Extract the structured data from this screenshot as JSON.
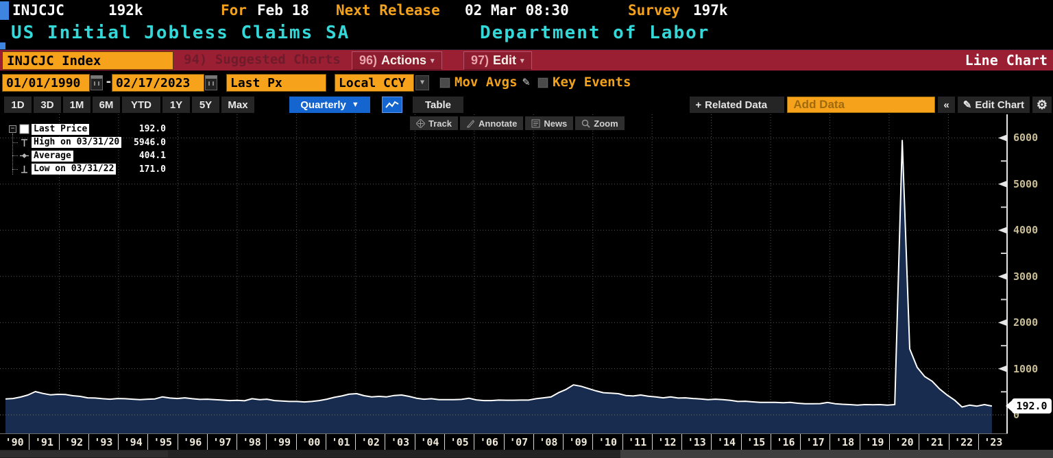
{
  "header": {
    "ticker": "INJCJC",
    "last_value": "192k",
    "for_label": "For",
    "for_value": "Feb 18",
    "next_release_label": "Next Release",
    "next_release_value": "02 Mar 08:30",
    "survey_label": "Survey",
    "survey_value": "197k",
    "security_name": "US Initial Jobless Claims SA",
    "source": "Department of Labor"
  },
  "command_bar": {
    "security_input": "INJCJC Index",
    "suggested_charts": "94) Suggested Charts",
    "actions_num": "96)",
    "actions_label": "Actions",
    "edit_num": "97)",
    "edit_label": "Edit",
    "dropdown_caret": "▾",
    "chart_type": "Line Chart"
  },
  "settings_bar": {
    "date_from": "01/01/1990",
    "date_separator": "-",
    "date_to": "02/17/2023",
    "px_type": "Last Px",
    "currency": "Local CCY",
    "dropdown_caret": "▼",
    "mov_avgs_label": "Mov Avgs",
    "key_events_label": "Key Events",
    "pencil_glyph": "✎"
  },
  "period_bar": {
    "periods": [
      "1D",
      "3D",
      "1M",
      "6M",
      "YTD",
      "1Y",
      "5Y",
      "Max"
    ],
    "frequency": "Quarterly",
    "frequency_caret": "▼",
    "table_label": "Table",
    "related_plus": "+",
    "related_label": "Related Data",
    "add_data_placeholder": "Add Data",
    "collapse_label": "«",
    "edit_chart_pencil": "✎",
    "edit_chart_label": "Edit Chart",
    "gear_glyph": "⚙"
  },
  "chart_toolbar": [
    "Track",
    "Annotate",
    "News",
    "Zoom"
  ],
  "legend": {
    "expander_glyph": "−",
    "rows": [
      {
        "marker": "swatch",
        "label": "Last Price",
        "value": "192.0"
      },
      {
        "marker": "high",
        "label": "High on 03/31/20",
        "value": "5946.0"
      },
      {
        "marker": "avg",
        "label": "Average",
        "value": "404.1"
      },
      {
        "marker": "low",
        "label": "Low on 03/31/22",
        "value": "171.0"
      }
    ]
  },
  "last_price_badge": "192.0",
  "colors": {
    "amber": "#f3a21b",
    "cyan": "#35d8d8",
    "command_bar_red": "#9b1f33",
    "orange_field": "#f6a21b",
    "highlight_blue": "#1565d1",
    "security_tag_blue": "#3d85e0",
    "axis_label": "#c9bd96",
    "chart_line": "#ffffff",
    "chart_fill": "#172c4e",
    "gridline": "#565656",
    "badge_bg": "#ffffff"
  },
  "chart_data": {
    "type": "area",
    "title": "US Initial Jobless Claims SA (INJCJC Index)",
    "series_name": "Last Price",
    "frequency": "quarterly",
    "x_start": "1990-Q1",
    "x_end": "2023-Q1",
    "x_tick_labels": [
      "'90",
      "'91",
      "'92",
      "'93",
      "'94",
      "'95",
      "'96",
      "'97",
      "'98",
      "'99",
      "'00",
      "'01",
      "'02",
      "'03",
      "'04",
      "'05",
      "'06",
      "'07",
      "'08",
      "'09",
      "'10",
      "'11",
      "'12",
      "'13",
      "'14",
      "'15",
      "'16",
      "'17",
      "'18",
      "'19",
      "'20",
      "'21",
      "'22",
      "'23"
    ],
    "y_ticks": [
      0,
      1000,
      2000,
      3000,
      4000,
      5000,
      6000
    ],
    "ylim": [
      0,
      6500
    ],
    "grid": "dotted",
    "legend_position": "top-left",
    "high": {
      "date": "03/31/20",
      "value": 5946.0
    },
    "low": {
      "date": "03/31/22",
      "value": 171.0
    },
    "average": 404.1,
    "last": 192.0,
    "values": [
      345,
      355,
      385,
      430,
      505,
      465,
      435,
      445,
      440,
      415,
      400,
      370,
      365,
      350,
      340,
      355,
      350,
      340,
      330,
      340,
      345,
      390,
      365,
      355,
      370,
      350,
      335,
      340,
      330,
      320,
      310,
      315,
      305,
      350,
      330,
      340,
      310,
      300,
      290,
      290,
      280,
      290,
      310,
      340,
      380,
      410,
      450,
      460,
      415,
      390,
      400,
      390,
      420,
      430,
      400,
      360,
      340,
      350,
      330,
      330,
      330,
      335,
      360,
      325,
      310,
      310,
      320,
      318,
      318,
      320,
      320,
      350,
      370,
      390,
      480,
      550,
      650,
      620,
      570,
      520,
      480,
      470,
      460,
      420,
      410,
      430,
      405,
      390,
      370,
      390,
      365,
      370,
      355,
      345,
      330,
      340,
      330,
      315,
      290,
      295,
      282,
      272,
      272,
      270,
      262,
      270,
      252,
      240,
      242,
      244,
      268,
      242,
      230,
      222,
      212,
      222,
      220,
      222,
      212,
      222,
      5946,
      1430,
      1030,
      830,
      730,
      560,
      430,
      320,
      171,
      210,
      190,
      222,
      192
    ]
  }
}
